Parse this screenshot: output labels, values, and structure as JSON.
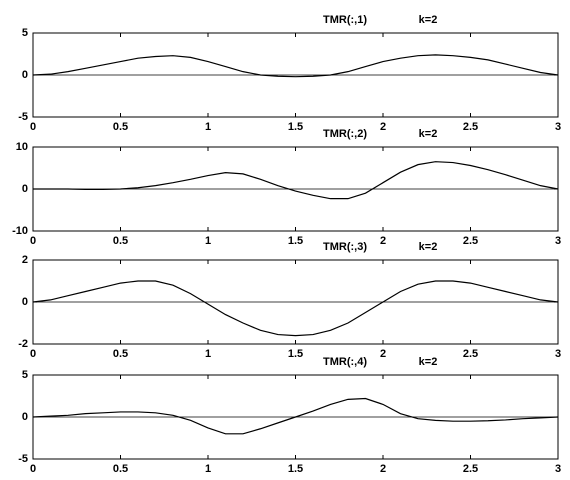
{
  "chart_data": [
    {
      "type": "line",
      "title": "TMR(:,1)",
      "annotation": "k=2",
      "x": [
        0,
        0.1,
        0.2,
        0.3,
        0.4,
        0.5,
        0.6,
        0.7,
        0.8,
        0.9,
        1,
        1.1,
        1.2,
        1.3,
        1.4,
        1.5,
        1.6,
        1.7,
        1.8,
        1.9,
        2,
        2.1,
        2.2,
        2.3,
        2.4,
        2.5,
        2.6,
        2.7,
        2.8,
        2.9,
        3
      ],
      "values": [
        0,
        0.1,
        0.4,
        0.8,
        1.2,
        1.6,
        2.0,
        2.2,
        2.3,
        2.1,
        1.6,
        1.0,
        0.4,
        0,
        -0.15,
        -0.2,
        -0.15,
        0,
        0.4,
        1.0,
        1.6,
        2.0,
        2.3,
        2.4,
        2.3,
        2.1,
        1.8,
        1.3,
        0.8,
        0.3,
        0
      ],
      "color": "#000000",
      "xlim": [
        0,
        3
      ],
      "xticks": [
        0,
        0.5,
        1,
        1.5,
        2,
        2.5,
        3
      ],
      "ylim": [
        -5,
        5
      ],
      "yticks": [
        -5,
        0,
        5
      ]
    },
    {
      "type": "line",
      "title": "TMR(:,2)",
      "annotation": "k=2",
      "x": [
        0,
        0.1,
        0.2,
        0.3,
        0.4,
        0.5,
        0.6,
        0.7,
        0.8,
        0.9,
        1,
        1.1,
        1.2,
        1.3,
        1.4,
        1.5,
        1.6,
        1.7,
        1.8,
        1.9,
        2,
        2.1,
        2.2,
        2.3,
        2.4,
        2.5,
        2.6,
        2.7,
        2.8,
        2.9,
        3
      ],
      "values": [
        0,
        0,
        0,
        -0.1,
        -0.1,
        0,
        0.3,
        0.8,
        1.5,
        2.3,
        3.2,
        3.9,
        3.6,
        2.3,
        0.8,
        -0.5,
        -1.5,
        -2.3,
        -2.3,
        -1,
        1.5,
        4,
        5.8,
        6.5,
        6.3,
        5.6,
        4.6,
        3.4,
        2.1,
        0.8,
        0
      ],
      "color": "#000000",
      "xlim": [
        0,
        3
      ],
      "xticks": [
        0,
        0.5,
        1,
        1.5,
        2,
        2.5,
        3
      ],
      "ylim": [
        -10,
        10
      ],
      "yticks": [
        -10,
        0,
        10
      ]
    },
    {
      "type": "line",
      "title": "TMR(:,3)",
      "annotation": "k=2",
      "x": [
        0,
        0.1,
        0.2,
        0.3,
        0.4,
        0.5,
        0.6,
        0.7,
        0.8,
        0.9,
        1,
        1.1,
        1.2,
        1.3,
        1.4,
        1.5,
        1.6,
        1.7,
        1.8,
        1.9,
        2,
        2.1,
        2.2,
        2.3,
        2.4,
        2.5,
        2.6,
        2.7,
        2.8,
        2.9,
        3
      ],
      "values": [
        0,
        0.1,
        0.3,
        0.5,
        0.7,
        0.9,
        1.0,
        1.0,
        0.8,
        0.4,
        -0.1,
        -0.6,
        -1.0,
        -1.35,
        -1.55,
        -1.6,
        -1.55,
        -1.35,
        -1.0,
        -0.5,
        0,
        0.5,
        0.85,
        1.0,
        1.0,
        0.9,
        0.7,
        0.5,
        0.3,
        0.1,
        0
      ],
      "color": "#000000",
      "xlim": [
        0,
        3
      ],
      "xticks": [
        0,
        0.5,
        1,
        1.5,
        2,
        2.5,
        3
      ],
      "ylim": [
        -2,
        2
      ],
      "yticks": [
        -2,
        0,
        2
      ]
    },
    {
      "type": "line",
      "title": "TMR(:,4)",
      "annotation": "k=2",
      "x": [
        0,
        0.1,
        0.2,
        0.3,
        0.4,
        0.5,
        0.6,
        0.7,
        0.8,
        0.9,
        1,
        1.1,
        1.2,
        1.3,
        1.4,
        1.5,
        1.6,
        1.7,
        1.8,
        1.9,
        2,
        2.1,
        2.2,
        2.3,
        2.4,
        2.5,
        2.6,
        2.7,
        2.8,
        2.9,
        3
      ],
      "values": [
        0,
        0.1,
        0.2,
        0.4,
        0.5,
        0.6,
        0.6,
        0.5,
        0.2,
        -0.4,
        -1.3,
        -2.0,
        -2.0,
        -1.4,
        -0.7,
        0,
        0.7,
        1.5,
        2.1,
        2.2,
        1.5,
        0.4,
        -0.2,
        -0.4,
        -0.5,
        -0.5,
        -0.45,
        -0.35,
        -0.2,
        -0.1,
        0
      ],
      "color": "#000000",
      "xlim": [
        0,
        3
      ],
      "xticks": [
        0,
        0.5,
        1,
        1.5,
        2,
        2.5,
        3
      ],
      "ylim": [
        -5,
        5
      ],
      "yticks": [
        -5,
        0,
        5
      ]
    }
  ]
}
